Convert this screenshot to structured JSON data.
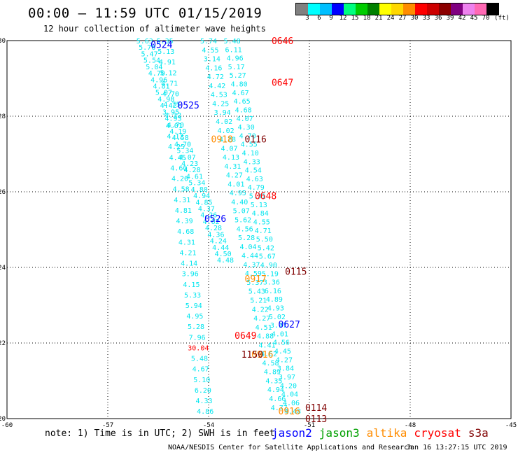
{
  "header": {
    "title": "00:00 – 11:59 UTC 01/15/2019",
    "subtitle": "12 hour collection of altimeter wave heights"
  },
  "colorbar": {
    "unit_label": "(ft)",
    "bins": [
      {
        "label": "3",
        "color": "#808080"
      },
      {
        "label": "6",
        "color": "#00ffff"
      },
      {
        "label": "9",
        "color": "#00bfff"
      },
      {
        "label": "12",
        "color": "#0000ff"
      },
      {
        "label": "15",
        "color": "#00ff7f"
      },
      {
        "label": "18",
        "color": "#00cd00"
      },
      {
        "label": "21",
        "color": "#008000"
      },
      {
        "label": "24",
        "color": "#ffff00"
      },
      {
        "label": "27",
        "color": "#ffd700"
      },
      {
        "label": "30",
        "color": "#ff8c00"
      },
      {
        "label": "33",
        "color": "#ff0000"
      },
      {
        "label": "36",
        "color": "#cd0000"
      },
      {
        "label": "39",
        "color": "#8b0000"
      },
      {
        "label": "42",
        "color": "#800080"
      },
      {
        "label": "45",
        "color": "#ee82ee"
      },
      {
        "label": "70",
        "color": "#ff69b4"
      },
      {
        "label": "",
        "color": "#000000"
      }
    ]
  },
  "footer": {
    "note": "note: 1) Time is in UTC; 2) SWH is in feet",
    "credit": "NOAA/NESDIS Center for Satellite Applications and Research",
    "timestamp": "Jan 16 13:27:15 UTC 2019",
    "legend": [
      {
        "name": "jason2",
        "color": "#0000ff"
      },
      {
        "name": "jason3",
        "color": "#00a000"
      },
      {
        "name": "altika",
        "color": "#ff8c00"
      },
      {
        "name": "cryosat",
        "color": "#ff0000"
      },
      {
        "name": "s3a",
        "color": "#800000"
      }
    ]
  },
  "chart_data": {
    "type": "scatter",
    "title": "00:00 – 11:59 UTC 01/15/2019",
    "subtitle": "12 hour collection of altimeter wave heights",
    "xlim": [
      -60,
      -45
    ],
    "ylim": [
      20,
      30
    ],
    "x_ticks": [
      -60,
      -57,
      -54,
      -51,
      -48,
      -45
    ],
    "y_ticks": [
      20,
      22,
      24,
      26,
      28,
      30
    ],
    "x_tick_labels": [
      "-60",
      "-57",
      "-54",
      "-51",
      "-48",
      "-45"
    ],
    "y_tick_labels": [
      "20",
      "22",
      "24",
      "26",
      "28",
      "30"
    ],
    "grid": true,
    "value_color": "#00e5ee",
    "high_value_color": "#ff0000",
    "tracks": [
      {
        "name": "0524-0525-0526 pass",
        "start": [
          -55.9,
          30.0
        ],
        "end": [
          -53.5,
          24.2
        ],
        "values": [
          "5.63",
          "5.76",
          "5.47",
          "5.54",
          "5.04",
          "4.70",
          "4.96",
          "4.81",
          "5.07",
          "4.98",
          "4.42",
          "3.95",
          "4.93",
          "4.70",
          "4.19",
          "4.58",
          "4.70",
          "5.34",
          "4.07",
          "4.23",
          "4.28",
          "4.61",
          "5.34",
          "4.80",
          "4.94",
          "4.85",
          "4.37",
          "4.26",
          "4.02",
          "4.28",
          "4.36",
          "4.24",
          "4.44",
          "4.50",
          "4.48"
        ]
      },
      {
        "name": "central descending pass",
        "start": [
          -55.3,
          30.0
        ],
        "end": [
          -54.1,
          20.2
        ],
        "values": [
          "5.35",
          "5.13",
          "4.91",
          "5.12",
          "4.71",
          "4.70",
          "4.75",
          "4.32",
          "4.01",
          "4.12",
          "4.25",
          "4.45",
          "4.60",
          "4.20",
          "4.58",
          "4.31",
          "4.81",
          "4.39",
          "4.68",
          "4.31",
          "4.21",
          "4.14",
          "3.96",
          "4.15",
          "5.33",
          "5.94",
          "4.95",
          "5.28",
          "7.96",
          "30.04",
          "5.48",
          "4.67",
          "5.10",
          "6.20",
          "4.33",
          "4.86"
        ]
      },
      {
        "name": "0116-0115-0114 pass",
        "start": [
          -54.0,
          30.0
        ],
        "end": [
          -51.9,
          20.3
        ],
        "values": [
          "5.74",
          "4.55",
          "3.14",
          "4.16",
          "4.72",
          "4.42",
          "4.53",
          "4.25",
          "3.94",
          "4.02",
          "4.02",
          "4.28",
          "4.07",
          "4.13",
          "4.31",
          "4.27",
          "4.01",
          "4.95",
          "4.40",
          "5.07",
          "5.62",
          "4.56",
          "5.28",
          "4.04",
          "4.44",
          "4.37",
          "4.59",
          "5.37",
          "5.43",
          "5.21",
          "4.22",
          "4.27",
          "4.51",
          "4.88",
          "4.41",
          "4.62",
          "4.58",
          "4.89",
          "4.35",
          "4.94",
          "4.66",
          "4.77"
        ]
      },
      {
        "name": "0646-0647-0648 pass",
        "start": [
          -53.3,
          30.0
        ],
        "end": [
          -51.5,
          20.2
        ],
        "values": [
          "5.48",
          "6.11",
          "4.96",
          "5.17",
          "5.27",
          "4.80",
          "4.67",
          "4.65",
          "4.68",
          "4.07",
          "4.30",
          "4.70",
          "4.55",
          "4.10",
          "4.33",
          "4.54",
          "4.63",
          "4.79",
          "5.31",
          "5.13",
          "4.84",
          "4.55",
          "4.71",
          "5.50",
          "5.42",
          "5.67",
          "4.90",
          "5.19",
          "3.36",
          "6.16",
          "4.89",
          "4.93",
          "5.02",
          "3.97",
          "4.01",
          "4.56",
          "4.45",
          "4.27",
          "3.84",
          "3.97",
          "4.20",
          "4.04",
          "4.06",
          "4.48"
        ]
      }
    ],
    "pass_labels": [
      {
        "label": "0524",
        "lon": -55.4,
        "lat": 29.9,
        "color": "#0000ff"
      },
      {
        "label": "0525",
        "lon": -54.6,
        "lat": 28.3,
        "color": "#0000ff"
      },
      {
        "label": "0526",
        "lon": -53.8,
        "lat": 25.3,
        "color": "#0000ff"
      },
      {
        "label": "0627",
        "lon": -51.6,
        "lat": 22.5,
        "color": "#0000ff"
      },
      {
        "label": "0646",
        "lon": -51.8,
        "lat": 30.0,
        "color": "#ff0000"
      },
      {
        "label": "0647",
        "lon": -51.8,
        "lat": 28.9,
        "color": "#ff0000"
      },
      {
        "label": "0648",
        "lon": -52.3,
        "lat": 25.9,
        "color": "#ff0000"
      },
      {
        "label": "0649",
        "lon": -52.9,
        "lat": 22.2,
        "color": "#ff0000"
      },
      {
        "label": "0116",
        "lon": -52.6,
        "lat": 27.4,
        "color": "#800000"
      },
      {
        "label": "0115",
        "lon": -51.4,
        "lat": 23.9,
        "color": "#800000"
      },
      {
        "label": "0114",
        "lon": -50.8,
        "lat": 20.3,
        "color": "#800000"
      },
      {
        "label": "0113",
        "lon": -50.8,
        "lat": 20.0,
        "color": "#800000"
      },
      {
        "label": "0918",
        "lon": -53.6,
        "lat": 27.4,
        "color": "#ff8c00"
      },
      {
        "label": "0917",
        "lon": -52.6,
        "lat": 23.7,
        "color": "#ff8c00"
      },
      {
        "label": "0916",
        "lon": -52.4,
        "lat": 21.7,
        "color": "#ff8c00"
      },
      {
        "label": "0916",
        "lon": -51.6,
        "lat": 20.2,
        "color": "#ff8c00"
      },
      {
        "label": "1150",
        "lon": -52.7,
        "lat": 21.7,
        "color": "#800000"
      }
    ]
  }
}
